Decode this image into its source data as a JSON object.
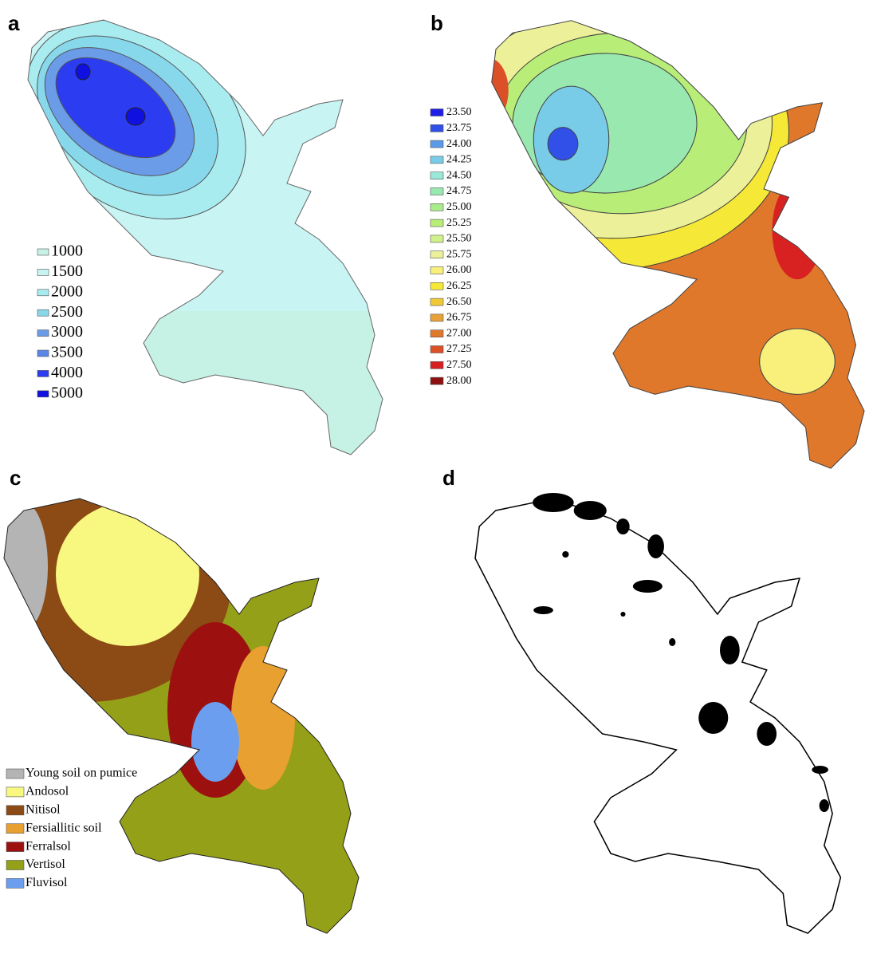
{
  "panels": [
    {
      "label": "a",
      "legend": [
        {
          "text": "1000",
          "color": "#c6f2e6"
        },
        {
          "text": "1500",
          "color": "#c8f4f4"
        },
        {
          "text": "2000",
          "color": "#a8ecf0"
        },
        {
          "text": "2500",
          "color": "#88d8ec"
        },
        {
          "text": "3000",
          "color": "#6a9ce8"
        },
        {
          "text": "3500",
          "color": "#5a86e8"
        },
        {
          "text": "4000",
          "color": "#2c3cf0"
        },
        {
          "text": "5000",
          "color": "#1010e0"
        }
      ]
    },
    {
      "label": "b",
      "legend": [
        {
          "text": "23.50",
          "color": "#1e1ee6"
        },
        {
          "text": "23.75",
          "color": "#3050e8"
        },
        {
          "text": "24.00",
          "color": "#5a9ae8"
        },
        {
          "text": "24.25",
          "color": "#78cce8"
        },
        {
          "text": "24.50",
          "color": "#9ae8d8"
        },
        {
          "text": "24.75",
          "color": "#98e8b0"
        },
        {
          "text": "25.00",
          "color": "#a8ec8c"
        },
        {
          "text": "25.25",
          "color": "#b8ee78"
        },
        {
          "text": "25.50",
          "color": "#d0f08a"
        },
        {
          "text": "25.75",
          "color": "#ecf098"
        },
        {
          "text": "26.00",
          "color": "#f8f07a"
        },
        {
          "text": "26.25",
          "color": "#f6e836"
        },
        {
          "text": "26.50",
          "color": "#f0c836"
        },
        {
          "text": "26.75",
          "color": "#e8a038"
        },
        {
          "text": "27.00",
          "color": "#e0782c"
        },
        {
          "text": "27.25",
          "color": "#dc5028"
        },
        {
          "text": "27.50",
          "color": "#d82222"
        },
        {
          "text": "28.00",
          "color": "#8c1010"
        }
      ]
    },
    {
      "label": "c",
      "legend": [
        {
          "text": "Young soil on pumice",
          "color": "#b4b4b4"
        },
        {
          "text": "Andosol",
          "color": "#f8f880"
        },
        {
          "text": "Nitisol",
          "color": "#8c4a14"
        },
        {
          "text": "Fersiallitic soil",
          "color": "#e8a030"
        },
        {
          "text": "Ferralsol",
          "color": "#9c1010"
        },
        {
          "text": "Vertisol",
          "color": "#94a018"
        },
        {
          "text": "Fluvisol",
          "color": "#6c9ef0"
        }
      ]
    },
    {
      "label": "d",
      "legend": []
    }
  ]
}
